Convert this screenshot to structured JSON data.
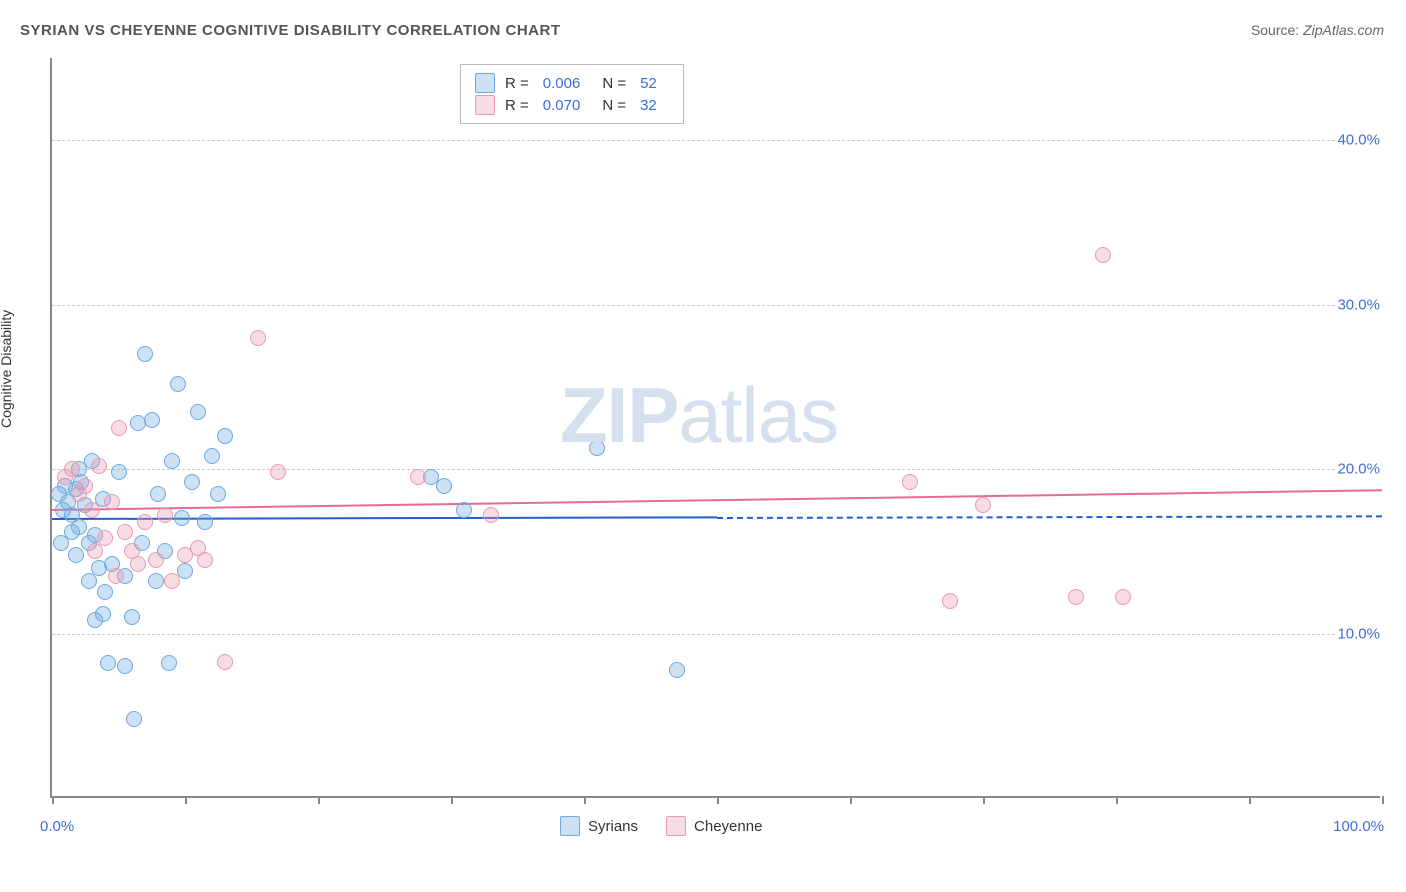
{
  "title": "SYRIAN VS CHEYENNE COGNITIVE DISABILITY CORRELATION CHART",
  "source_prefix": "Source: ",
  "source_name": "ZipAtlas.com",
  "y_axis_label": "Cognitive Disability",
  "watermark": {
    "bold": "ZIP",
    "rest": "atlas"
  },
  "chart": {
    "type": "scatter",
    "background_color": "#ffffff",
    "grid_color": "#cccccc",
    "axis_color": "#888888",
    "xlim": [
      0,
      100
    ],
    "ylim": [
      0,
      45
    ],
    "y_ticks": [
      10,
      20,
      30,
      40
    ],
    "y_tick_labels": [
      "10.0%",
      "20.0%",
      "30.0%",
      "40.0%"
    ],
    "x_ticks": [
      0,
      10,
      20,
      30,
      40,
      50,
      60,
      70,
      80,
      90,
      100
    ],
    "x_label_min": "0.0%",
    "x_label_max": "100.0%",
    "marker_radius": 8,
    "marker_fill_opacity": 0.35,
    "series": [
      {
        "name": "Syrians",
        "color_stroke": "#6ea9e0",
        "color_fill": "rgba(110,169,224,0.35)",
        "trend_color": "#1f5fd0",
        "R": "0.006",
        "N": "52",
        "trend": {
          "x1": 0,
          "y1": 17.0,
          "x2": 50,
          "y2": 17.1,
          "dash_after": 50,
          "x3": 100,
          "y3": 17.2
        },
        "points": [
          [
            0.5,
            18.5
          ],
          [
            0.8,
            17.5
          ],
          [
            1.0,
            19.0
          ],
          [
            1.2,
            18.0
          ],
          [
            1.5,
            17.2
          ],
          [
            1.8,
            18.8
          ],
          [
            2.0,
            16.5
          ],
          [
            2.2,
            19.2
          ],
          [
            2.5,
            17.8
          ],
          [
            2.8,
            15.5
          ],
          [
            3.0,
            20.5
          ],
          [
            3.2,
            16.0
          ],
          [
            3.5,
            14.0
          ],
          [
            3.8,
            18.2
          ],
          [
            4.0,
            12.5
          ],
          [
            4.5,
            14.2
          ],
          [
            5.0,
            19.8
          ],
          [
            5.5,
            13.5
          ],
          [
            6.0,
            11.0
          ],
          [
            6.5,
            22.8
          ],
          [
            7.0,
            27.0
          ],
          [
            7.5,
            23.0
          ],
          [
            8.0,
            18.5
          ],
          [
            8.5,
            15.0
          ],
          [
            9.0,
            20.5
          ],
          [
            9.5,
            25.2
          ],
          [
            10.0,
            13.8
          ],
          [
            10.5,
            19.2
          ],
          [
            11.0,
            23.5
          ],
          [
            11.5,
            16.8
          ],
          [
            12.0,
            20.8
          ],
          [
            12.5,
            18.5
          ],
          [
            13.0,
            22.0
          ],
          [
            3.2,
            10.8
          ],
          [
            4.2,
            8.2
          ],
          [
            5.5,
            8.0
          ],
          [
            6.2,
            4.8
          ],
          [
            8.8,
            8.2
          ],
          [
            28.5,
            19.5
          ],
          [
            29.5,
            19.0
          ],
          [
            31.0,
            17.5
          ],
          [
            41.0,
            21.3
          ],
          [
            47.0,
            7.8
          ],
          [
            2.0,
            20.0
          ],
          [
            1.5,
            16.2
          ],
          [
            0.7,
            15.5
          ],
          [
            1.8,
            14.8
          ],
          [
            2.8,
            13.2
          ],
          [
            3.8,
            11.2
          ],
          [
            6.8,
            15.5
          ],
          [
            7.8,
            13.2
          ],
          [
            9.8,
            17.0
          ]
        ]
      },
      {
        "name": "Cheyenne",
        "color_stroke": "#e89bb0",
        "color_fill": "rgba(232,155,176,0.35)",
        "trend_color": "#e86a8e",
        "R": "0.070",
        "N": "32",
        "trend": {
          "x1": 0,
          "y1": 17.6,
          "x2": 100,
          "y2": 18.8
        },
        "points": [
          [
            1.0,
            19.5
          ],
          [
            1.5,
            20.0
          ],
          [
            2.0,
            18.5
          ],
          [
            2.5,
            19.0
          ],
          [
            3.0,
            17.5
          ],
          [
            3.5,
            20.2
          ],
          [
            4.0,
            15.8
          ],
          [
            4.5,
            18.0
          ],
          [
            5.0,
            22.5
          ],
          [
            5.5,
            16.2
          ],
          [
            6.0,
            15.0
          ],
          [
            6.5,
            14.2
          ],
          [
            7.0,
            16.8
          ],
          [
            7.8,
            14.5
          ],
          [
            8.5,
            17.2
          ],
          [
            9.0,
            13.2
          ],
          [
            10.0,
            14.8
          ],
          [
            11.0,
            15.2
          ],
          [
            11.5,
            14.5
          ],
          [
            13.0,
            8.3
          ],
          [
            15.5,
            28.0
          ],
          [
            17.0,
            19.8
          ],
          [
            27.5,
            19.5
          ],
          [
            33.0,
            17.2
          ],
          [
            64.5,
            19.2
          ],
          [
            67.5,
            12.0
          ],
          [
            70.0,
            17.8
          ],
          [
            77.0,
            12.2
          ],
          [
            80.5,
            12.2
          ],
          [
            79.0,
            33.0
          ],
          [
            4.8,
            13.5
          ],
          [
            3.2,
            15.0
          ]
        ]
      }
    ]
  },
  "legend_bottom": [
    {
      "label": "Syrians",
      "swatch_fill": "rgba(110,169,224,0.35)",
      "swatch_stroke": "#6ea9e0"
    },
    {
      "label": "Cheyenne",
      "swatch_fill": "rgba(232,155,176,0.35)",
      "swatch_stroke": "#e89bb0"
    }
  ],
  "legend_top": [
    {
      "swatch_fill": "rgba(110,169,224,0.35)",
      "swatch_stroke": "#6ea9e0",
      "r_label": "R =",
      "r_val": "0.006",
      "n_label": "N =",
      "n_val": "52"
    },
    {
      "swatch_fill": "rgba(232,155,176,0.35)",
      "swatch_stroke": "#e89bb0",
      "r_label": "R =",
      "r_val": "0.070",
      "n_label": "N =",
      "n_val": "32"
    }
  ]
}
